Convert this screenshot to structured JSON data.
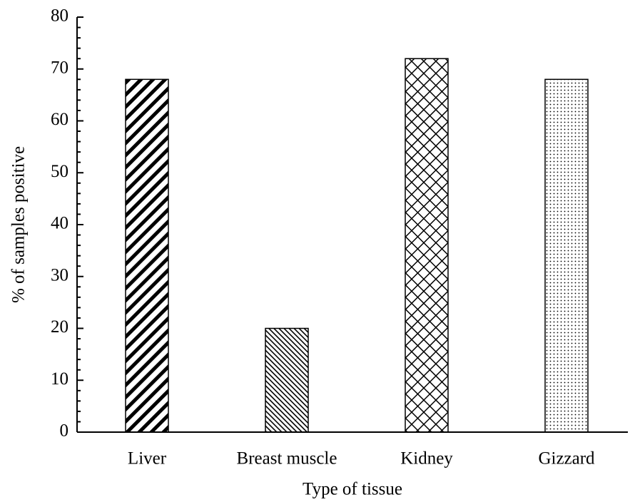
{
  "chart_data": {
    "type": "bar",
    "x_label": "Type of tissue",
    "y_label": "% of samples positive",
    "categories": [
      "Liver",
      "Breast muscle",
      "Kidney",
      "Gizzard"
    ],
    "values": [
      68,
      20,
      72,
      68
    ],
    "patterns": [
      "diagonal-down-wide",
      "diagonal-up-dense",
      "crosshatch",
      "dots"
    ],
    "ylim": [
      0,
      80
    ],
    "yticks": [
      0,
      10,
      20,
      30,
      40,
      50,
      60,
      70,
      80
    ],
    "grid": false
  }
}
